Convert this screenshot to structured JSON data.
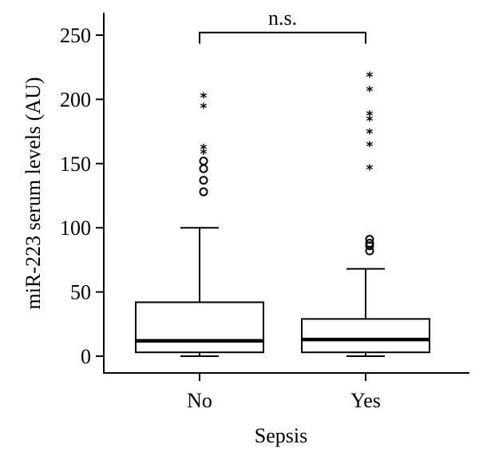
{
  "chart_data": {
    "type": "box",
    "title": "",
    "xlabel": "Sepsis",
    "ylabel": "miR-223 serum levels (AU)",
    "ylim": [
      -12,
      268
    ],
    "yticks": [
      0,
      50,
      100,
      150,
      200,
      250
    ],
    "categories": [
      "No",
      "Yes"
    ],
    "boxes": [
      {
        "category": "No",
        "whisker_low": 0,
        "q1": 3,
        "median": 12,
        "q3": 42,
        "whisker_high": 100,
        "outliers_circle": [
          128,
          137,
          146,
          152
        ],
        "outliers_star": [
          160,
          164,
          196,
          204
        ]
      },
      {
        "category": "Yes",
        "whisker_low": 0,
        "q1": 3,
        "median": 13,
        "q3": 29,
        "whisker_high": 68,
        "outliers_circle": [
          82,
          86,
          88,
          91
        ],
        "outliers_star": [
          148,
          166,
          176,
          186,
          190,
          209,
          220
        ]
      }
    ],
    "annotation": {
      "label": "n.s.",
      "level": 252
    },
    "grid": false,
    "legend": "none"
  }
}
